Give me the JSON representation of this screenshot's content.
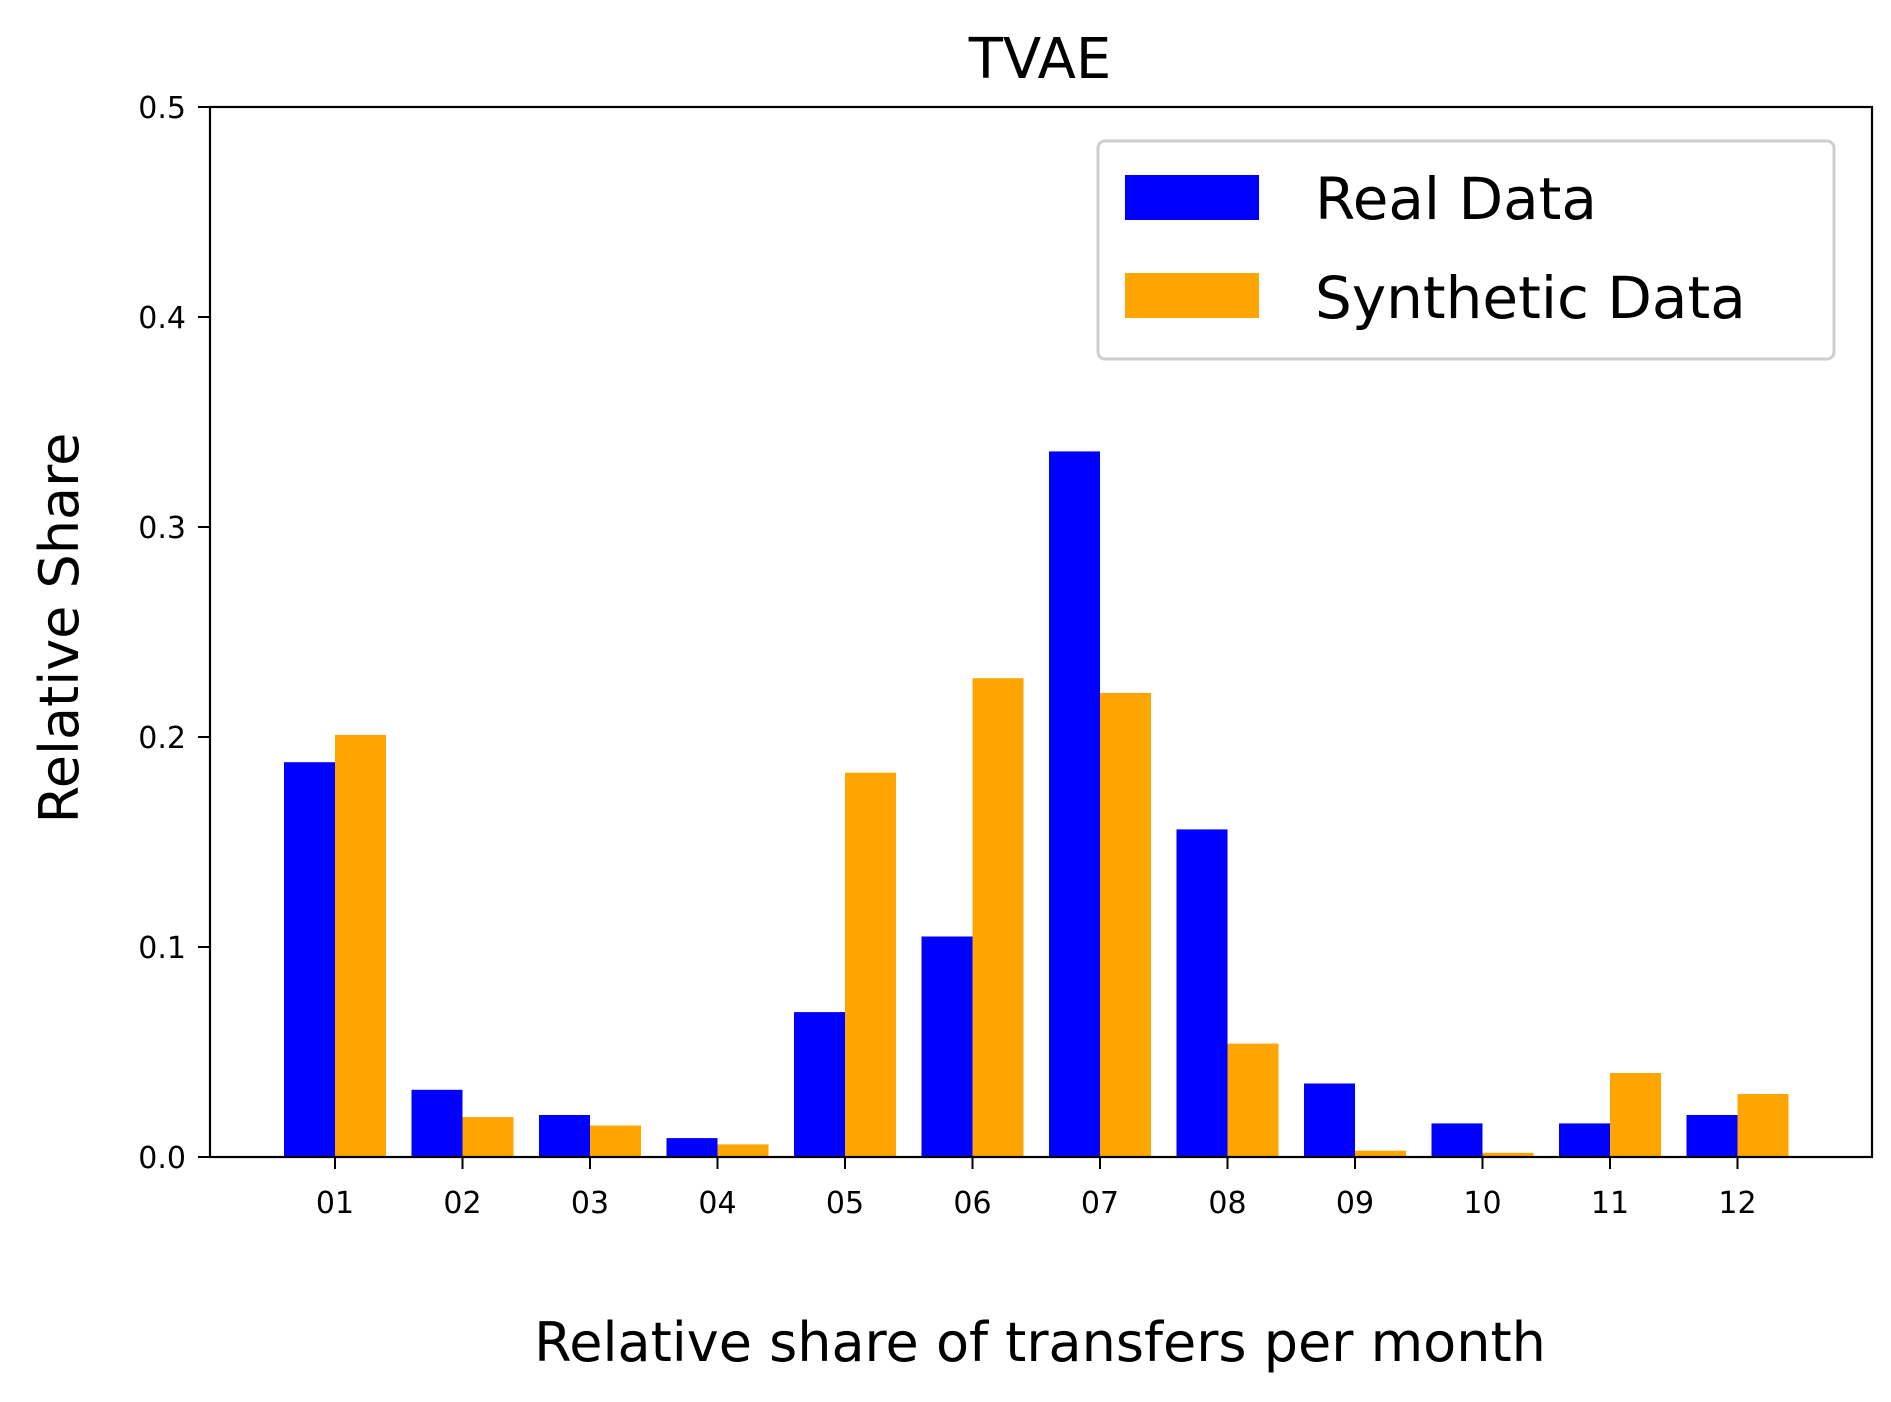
{
  "chart_data": {
    "type": "bar",
    "title": "TVAE",
    "xlabel": "Relative share of transfers per month",
    "ylabel": "Relative Share",
    "categories": [
      "01",
      "02",
      "03",
      "04",
      "05",
      "06",
      "07",
      "08",
      "09",
      "10",
      "11",
      "12"
    ],
    "series": [
      {
        "name": "Real Data",
        "color": "#0000ff",
        "values": [
          0.188,
          0.032,
          0.02,
          0.009,
          0.069,
          0.105,
          0.336,
          0.156,
          0.035,
          0.016,
          0.016,
          0.02
        ]
      },
      {
        "name": "Synthetic Data",
        "color": "#ffa500",
        "values": [
          0.201,
          0.019,
          0.015,
          0.006,
          0.183,
          0.228,
          0.221,
          0.054,
          0.003,
          0.002,
          0.04,
          0.03
        ]
      }
    ],
    "ylim": [
      0,
      0.5
    ],
    "yticks": [
      "0.0",
      "0.1",
      "0.2",
      "0.3",
      "0.4",
      "0.5"
    ],
    "grid": false,
    "legend_position": "top-right"
  }
}
